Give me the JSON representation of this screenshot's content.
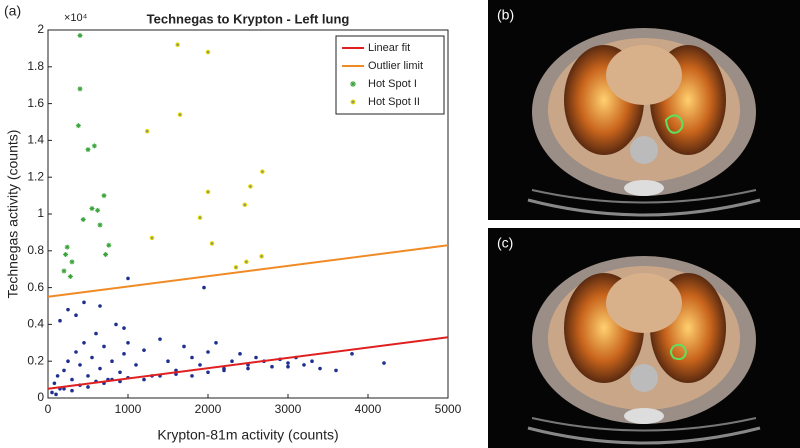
{
  "chart_data": {
    "type": "scatter",
    "panel_label": "(a)",
    "title": "Technegas to Krypton - Left lung",
    "xlabel": "Krypton-81m activity (counts)",
    "ylabel": "Technegas activity (counts)",
    "y_multiplier": "×10⁴",
    "xlim": [
      0,
      5000
    ],
    "xticks": [
      0,
      1000,
      2000,
      3000,
      4000,
      5000
    ],
    "ylim": [
      0,
      2
    ],
    "yticks": [
      0,
      0.2,
      0.4,
      0.6,
      0.8,
      1,
      1.2,
      1.4,
      1.6,
      1.8,
      2
    ],
    "legend": "upper right",
    "series": [
      {
        "name": "Linear fit",
        "type": "line",
        "color": "#e02020",
        "x": [
          0,
          5000
        ],
        "values": [
          0.05,
          0.33
        ]
      },
      {
        "name": "Outlier limit",
        "type": "line",
        "color": "#f08a24",
        "x": [
          0,
          5000
        ],
        "values": [
          0.55,
          0.83
        ]
      },
      {
        "name": "Hot Spot I",
        "type": "star",
        "color": "#3aa43a",
        "x": [
          400,
          400,
          380,
          500,
          580,
          550,
          620,
          700,
          650,
          440,
          760,
          720,
          240,
          220,
          300,
          200,
          280
        ],
        "values": [
          1.97,
          1.68,
          1.48,
          1.35,
          1.37,
          1.03,
          1.02,
          1.1,
          0.94,
          0.97,
          0.83,
          0.78,
          0.82,
          0.78,
          0.74,
          0.69,
          0.66
        ]
      },
      {
        "name": "Hot Spot II",
        "type": "ring",
        "color": "#e8e000",
        "x": [
          1620,
          2000,
          1650,
          1240,
          2000,
          2530,
          2680,
          1900,
          2460,
          1300,
          2050,
          2480,
          2670,
          2350
        ],
        "values": [
          1.92,
          1.88,
          1.54,
          1.45,
          1.12,
          1.15,
          1.23,
          0.98,
          1.05,
          0.87,
          0.84,
          0.74,
          0.77,
          0.71
        ]
      },
      {
        "type": "dot",
        "color": "#1f2f8f",
        "x": [
          50,
          80,
          120,
          150,
          200,
          250,
          300,
          350,
          400,
          450,
          500,
          550,
          600,
          650,
          700,
          750,
          800,
          850,
          900,
          950,
          1000,
          1100,
          1200,
          1300,
          1400,
          1500,
          1600,
          1700,
          1800,
          1900,
          2000,
          2100,
          2200,
          2300,
          2400,
          2500,
          2600,
          2700,
          2800,
          2900,
          3000,
          3100,
          3200,
          3300,
          3400,
          3600,
          3800,
          4200,
          100,
          200,
          300,
          400,
          500,
          600,
          700,
          800,
          900,
          1000,
          1200,
          1400,
          1600,
          1800,
          2000,
          2200,
          2500,
          3000,
          150,
          350,
          650,
          950,
          1950,
          1000,
          250,
          450
        ],
        "values": [
          0.03,
          0.08,
          0.12,
          0.05,
          0.15,
          0.2,
          0.1,
          0.25,
          0.18,
          0.3,
          0.12,
          0.22,
          0.35,
          0.16,
          0.28,
          0.1,
          0.2,
          0.4,
          0.14,
          0.24,
          0.3,
          0.18,
          0.26,
          0.12,
          0.32,
          0.2,
          0.15,
          0.28,
          0.22,
          0.18,
          0.25,
          0.3,
          0.16,
          0.2,
          0.24,
          0.18,
          0.22,
          0.2,
          0.17,
          0.21,
          0.19,
          0.22,
          0.18,
          0.2,
          0.16,
          0.15,
          0.24,
          0.19,
          0.02,
          0.05,
          0.04,
          0.07,
          0.06,
          0.09,
          0.08,
          0.1,
          0.09,
          0.11,
          0.1,
          0.12,
          0.13,
          0.12,
          0.14,
          0.15,
          0.16,
          0.17,
          0.42,
          0.45,
          0.5,
          0.38,
          0.6,
          0.65,
          0.48,
          0.52
        ]
      }
    ]
  },
  "images": [
    {
      "label": "(b)"
    },
    {
      "label": "(c)"
    }
  ]
}
